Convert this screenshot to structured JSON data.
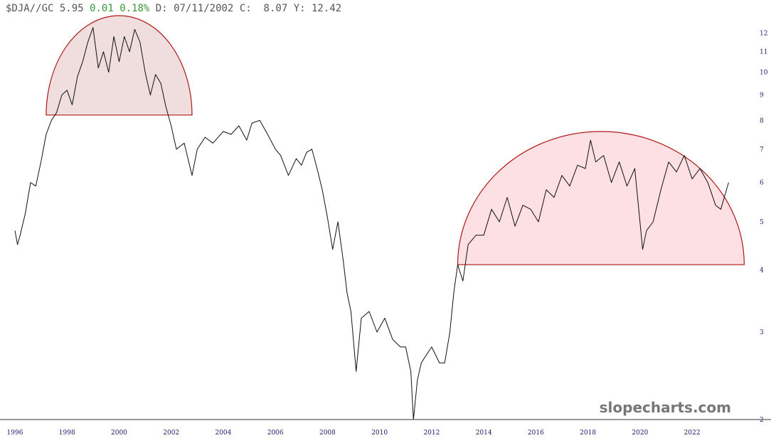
{
  "header": {
    "symbol": "$DJA//GC",
    "last": "5.95",
    "change": "0.01",
    "change_pct": "0.18%",
    "date_label": "D:",
    "date": "07/11/2002",
    "close_label": "C:",
    "close": "8.07",
    "y_label": "Y:",
    "y_value": "12.42"
  },
  "watermark": "slopecharts.com",
  "colors": {
    "line": "#111111",
    "dome_stroke": "#b01818",
    "dome_fill_left": "#f0dede",
    "dome_fill_right": "#fde0e3",
    "header_change": "#3a9a3a",
    "axis_text": "#1a1a6e"
  },
  "chart_data": {
    "type": "line",
    "title": "",
    "xlabel": "",
    "ylabel": "",
    "y_scale": "log",
    "ylim": [
      2,
      13
    ],
    "xlim": [
      1995.7,
      2024.1
    ],
    "grid": false,
    "y_ticks": [
      2,
      3,
      4,
      5,
      6,
      7,
      8,
      9,
      10,
      11,
      12
    ],
    "x_ticks": [
      "1996",
      "1998",
      "2000",
      "2002",
      "2004",
      "2006",
      "2008",
      "2010",
      "2012",
      "2014",
      "2016",
      "2018",
      "2020",
      "2022"
    ],
    "series": [
      {
        "values_x": [
          1996.0,
          1996.1,
          1996.2,
          1996.4,
          1996.6,
          1996.8,
          1997.0,
          1997.2,
          1997.4,
          1997.6,
          1997.8,
          1998.0,
          1998.2,
          1998.4,
          1998.6,
          1998.8,
          1999.0,
          1999.2,
          1999.4,
          1999.6,
          1999.8,
          2000.0,
          2000.2,
          2000.4,
          2000.6,
          2000.8,
          2001.0,
          2001.2,
          2001.4,
          2001.6,
          2001.8,
          2002.0,
          2002.2,
          2002.5,
          2002.8,
          2003.0,
          2003.3,
          2003.6,
          2004.0,
          2004.3,
          2004.6,
          2004.9,
          2005.1,
          2005.4,
          2005.7,
          2006.0,
          2006.2,
          2006.5,
          2006.8,
          2007.0,
          2007.2,
          2007.4,
          2007.6,
          2007.8,
          2008.0,
          2008.2,
          2008.4,
          2008.6,
          2008.75,
          2008.9,
          2009.1,
          2009.3,
          2009.6,
          2009.9,
          2010.2,
          2010.5,
          2010.8,
          2011.0,
          2011.2,
          2011.3,
          2011.45,
          2011.6,
          2011.8,
          2012.0,
          2012.3,
          2012.5,
          2012.7,
          2012.85,
          2013.0,
          2013.2,
          2013.4,
          2013.7,
          2014.0,
          2014.3,
          2014.6,
          2014.9,
          2015.2,
          2015.5,
          2015.8,
          2016.1,
          2016.4,
          2016.7,
          2017.0,
          2017.3,
          2017.6,
          2017.9,
          2018.1,
          2018.3,
          2018.6,
          2018.9,
          2019.2,
          2019.5,
          2019.8,
          2020.1,
          2020.25,
          2020.5,
          2020.8,
          2021.1,
          2021.4,
          2021.7,
          2022.0,
          2022.3,
          2022.6,
          2022.9,
          2023.1,
          2023.4
        ],
        "values_y": [
          4.8,
          4.5,
          4.7,
          5.2,
          6.0,
          5.9,
          6.6,
          7.5,
          8.0,
          8.3,
          9.0,
          9.2,
          8.6,
          9.8,
          10.5,
          11.5,
          12.3,
          10.2,
          11.0,
          10.0,
          11.8,
          10.5,
          11.8,
          11.0,
          12.2,
          11.5,
          10.0,
          9.0,
          9.9,
          9.5,
          8.5,
          7.8,
          7.0,
          7.2,
          6.2,
          7.0,
          7.4,
          7.2,
          7.6,
          7.5,
          7.8,
          7.3,
          7.9,
          8.0,
          7.5,
          7.0,
          6.8,
          6.2,
          6.7,
          6.5,
          6.9,
          7.0,
          6.4,
          5.8,
          5.1,
          4.4,
          5.0,
          4.2,
          3.6,
          3.3,
          2.5,
          3.2,
          3.3,
          3.0,
          3.2,
          2.9,
          2.8,
          2.8,
          2.5,
          2.0,
          2.4,
          2.6,
          2.7,
          2.8,
          2.6,
          2.6,
          3.0,
          3.6,
          4.1,
          3.8,
          4.5,
          4.7,
          4.7,
          5.3,
          5.0,
          5.6,
          4.9,
          5.4,
          5.3,
          5.0,
          5.8,
          5.6,
          6.2,
          5.9,
          6.5,
          6.4,
          7.3,
          6.6,
          6.8,
          6.0,
          6.6,
          5.9,
          6.4,
          4.4,
          4.8,
          5.0,
          5.8,
          6.6,
          6.3,
          6.8,
          6.1,
          6.4,
          6.0,
          5.4,
          5.3,
          6.0
        ]
      }
    ],
    "annotations": [
      {
        "type": "dome",
        "x_start": 1997.2,
        "x_end": 2002.8,
        "y_base": 8.2,
        "y_top": 13.0
      },
      {
        "type": "dome",
        "x_start": 2013.0,
        "x_end": 2024.0,
        "y_base": 4.1,
        "y_top": 7.6
      }
    ]
  }
}
